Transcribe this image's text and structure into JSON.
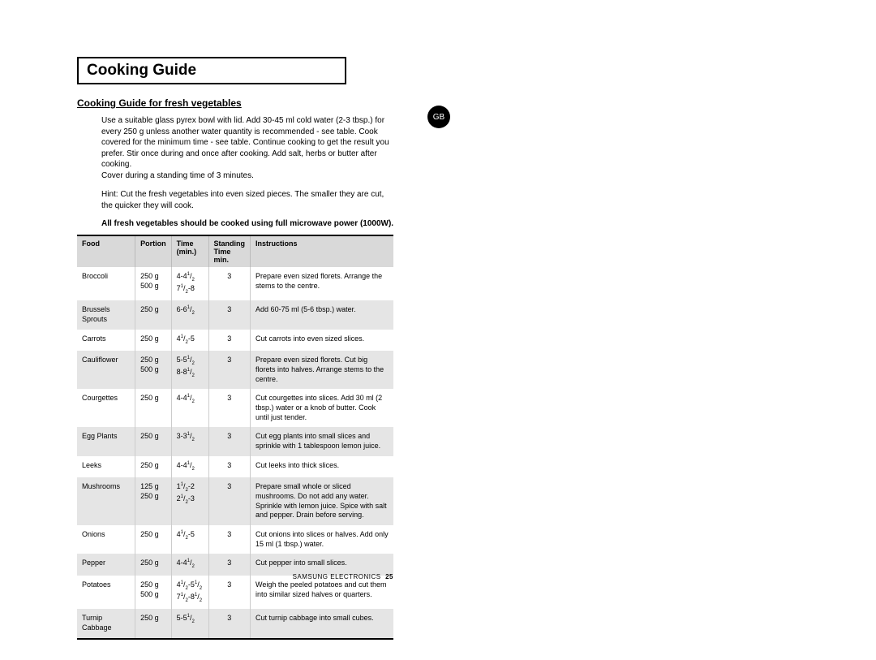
{
  "badge": "GB",
  "title": "Cooking Guide",
  "subtitle": "Cooking Guide for fresh vegetables",
  "intro1": "Use a suitable glass pyrex bowl with lid. Add 30-45 ml cold water (2-3 tbsp.) for every 250 g unless another water quantity is recommended - see table. Cook covered for the minimum time - see table. Continue cooking to get the result you prefer. Stir once during and once after cooking. Add salt, herbs or butter after cooking.",
  "intro2": "Cover during a standing time of 3 minutes.",
  "hint": "Hint: Cut the fresh vegetables into even sized pieces. The smaller they are cut, the quicker they will cook.",
  "bold_note": "All fresh vegetables should be cooked using full microwave power (1000W).",
  "columns": {
    "food": "Food",
    "portion": "Portion",
    "time": "Time (min.)",
    "standing": "Standing Time min.",
    "instructions": "Instructions"
  },
  "rows": [
    {
      "food": "Broccoli",
      "portion": "250 g\n500 g",
      "time": "4-4½\n7½-8",
      "standing": "3",
      "instr": "Prepare even sized florets. Arrange the stems to the centre.",
      "shaded": false
    },
    {
      "food": "Brussels Sprouts",
      "portion": "250 g",
      "time": "6-6½",
      "standing": "3",
      "instr": "Add 60-75 ml (5-6 tbsp.) water.",
      "shaded": true
    },
    {
      "food": "Carrots",
      "portion": "250 g",
      "time": "4½-5",
      "standing": "3",
      "instr": "Cut carrots into even sized slices.",
      "shaded": false
    },
    {
      "food": "Cauliflower",
      "portion": "250 g\n500 g",
      "time": "5-5½\n8-8½",
      "standing": "3",
      "instr": "Prepare even sized florets. Cut big florets into halves. Arrange stems to the centre.",
      "shaded": true
    },
    {
      "food": "Courgettes",
      "portion": "250 g",
      "time": "4-4½",
      "standing": "3",
      "instr": "Cut courgettes into slices. Add 30 ml (2 tbsp.) water or a knob of butter. Cook until just tender.",
      "shaded": false
    },
    {
      "food": "Egg Plants",
      "portion": "250 g",
      "time": "3-3½",
      "standing": "3",
      "instr": "Cut egg plants into small slices and sprinkle with 1 tablespoon lemon juice.",
      "shaded": true
    },
    {
      "food": "Leeks",
      "portion": "250 g",
      "time": "4-4½",
      "standing": "3",
      "instr": "Cut leeks into thick slices.",
      "shaded": false
    },
    {
      "food": "Mushrooms",
      "portion": "125 g\n250 g",
      "time": "1½-2\n2½-3",
      "standing": "3",
      "instr": "Prepare small whole or sliced mushrooms. Do not add any water. Sprinkle with lemon juice. Spice with salt and pepper. Drain before serving.",
      "shaded": true
    },
    {
      "food": "Onions",
      "portion": "250 g",
      "time": "4½-5",
      "standing": "3",
      "instr": "Cut onions into slices or halves. Add only 15 ml (1 tbsp.) water.",
      "shaded": false
    },
    {
      "food": "Pepper",
      "portion": "250 g",
      "time": "4-4½",
      "standing": "3",
      "instr": "Cut pepper into small slices.",
      "shaded": true
    },
    {
      "food": "Potatoes",
      "portion": "250 g\n500 g",
      "time": "4½-5½\n7½-8½",
      "standing": "3",
      "instr": "Weigh the peeled potatoes and cut them into similar sized halves or quarters.",
      "shaded": false
    },
    {
      "food": "Turnip Cabbage",
      "portion": "250 g",
      "time": "5-5½",
      "standing": "3",
      "instr": "Cut turnip cabbage into small cubes.",
      "shaded": true
    }
  ],
  "footer_brand": "SAMSUNG ELECTRONICS",
  "footer_page": "25"
}
